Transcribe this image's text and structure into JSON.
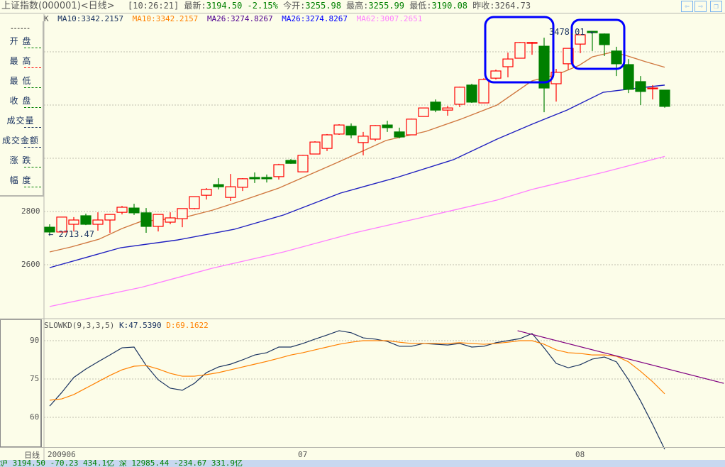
{
  "title": {
    "name": "上证指数(000001)<日线>",
    "time": "[10:26:21]",
    "latest_label": "最新:",
    "latest": "3194.50",
    "change_pct": "-2.15%",
    "open_label": "今开:",
    "open": "3255.98",
    "high_label": "最高:",
    "high": "3255.99",
    "low_label": "最低:",
    "low": "3190.08",
    "prev_close_label": "昨收:",
    "prev_close": "3264.73",
    "nav": {
      "back": "⇦",
      "forward": "⇨",
      "restore": "❐"
    }
  },
  "legend": {
    "k": "K",
    "ma10a": "MA10:3342.2157",
    "ma10b": "MA10:3342.2157",
    "ma26a": "MA26:3274.8267",
    "ma26b": "MA26:3274.8267",
    "ma62": "MA62:3007.2651",
    "colors": {
      "ma10a": "#1a3360",
      "ma10b": "#ff8000",
      "ma26a": "#500090",
      "ma26b": "#0000ff",
      "ma62": "#ff80ff"
    }
  },
  "sidebar": {
    "top_dash": "------",
    "items": [
      {
        "label": "开  盘",
        "dash": "#008000"
      },
      {
        "label": "最  高",
        "dash": "#ff0000"
      },
      {
        "label": "最  低",
        "dash": "#008000"
      },
      {
        "label": "收  盘",
        "dash": "#008000"
      },
      {
        "label": "成交量",
        "dash": "#1a3360"
      },
      {
        "label": "成交金额",
        "dash": "#1a3360"
      },
      {
        "label": "涨  跌",
        "dash": "#008000"
      },
      {
        "label": "幅  度",
        "dash": "#008000"
      }
    ]
  },
  "kd_legend": {
    "name": "SLOWKD(9,3,3,5)",
    "k": "K:47.5390",
    "d": "D:69.1622"
  },
  "bottom": {
    "period": "日线",
    "dates": [
      "200906",
      "07",
      "08"
    ]
  },
  "status": {
    "text": "沪 3194.50  -70.23  434.1亿  深 12985.44  -234.67  331.9亿"
  },
  "chart_data": [
    {
      "type": "candlestick",
      "y_ticks": [
        2600,
        2800
      ],
      "grid_levels": [
        2600,
        2800,
        3000,
        3200,
        3400
      ],
      "labels": {
        "low_marker": "2713.47",
        "high_marker": "3478.01"
      },
      "colors": {
        "up": "#ff0000",
        "down": "#008000"
      },
      "ohlc": [
        [
          2741,
          2752,
          2713,
          2723
        ],
        [
          2723,
          2779,
          2723,
          2779
        ],
        [
          2752,
          2779,
          2725,
          2768
        ],
        [
          2784,
          2792,
          2749,
          2752
        ],
        [
          2752,
          2797,
          2728,
          2768
        ],
        [
          2768,
          2789,
          2720,
          2789
        ],
        [
          2797,
          2821,
          2789,
          2816
        ],
        [
          2813,
          2829,
          2787,
          2795
        ],
        [
          2795,
          2813,
          2720,
          2744
        ],
        [
          2744,
          2789,
          2725,
          2789
        ],
        [
          2760,
          2797,
          2752,
          2776
        ],
        [
          2773,
          2811,
          2741,
          2811
        ],
        [
          2811,
          2856,
          2808,
          2856
        ],
        [
          2861,
          2888,
          2845,
          2883
        ],
        [
          2901,
          2925,
          2883,
          2893
        ],
        [
          2853,
          2941,
          2840,
          2893
        ],
        [
          2891,
          2925,
          2877,
          2923
        ],
        [
          2928,
          2947,
          2907,
          2923
        ],
        [
          2928,
          2939,
          2909,
          2923
        ],
        [
          2931,
          2979,
          2920,
          2976
        ],
        [
          2992,
          2997,
          2979,
          2981
        ],
        [
          2949,
          3013,
          2949,
          3011
        ],
        [
          3016,
          3064,
          3016,
          3061
        ],
        [
          3037,
          3091,
          3027,
          3088
        ],
        [
          3091,
          3128,
          3088,
          3125
        ],
        [
          3120,
          3131,
          3075,
          3088
        ],
        [
          3059,
          3099,
          3011,
          3083
        ],
        [
          3072,
          3125,
          3064,
          3123
        ],
        [
          3125,
          3141,
          3099,
          3115
        ],
        [
          3099,
          3115,
          3075,
          3080
        ],
        [
          3088,
          3149,
          3088,
          3147
        ],
        [
          3157,
          3189,
          3157,
          3189
        ],
        [
          3211,
          3221,
          3173,
          3181
        ],
        [
          3181,
          3197,
          3160,
          3189
        ],
        [
          3203,
          3269,
          3192,
          3267
        ],
        [
          3275,
          3280,
          3208,
          3211
        ],
        [
          3208,
          3301,
          3208,
          3296
        ],
        [
          3301,
          3333,
          3296,
          3328
        ],
        [
          3344,
          3397,
          3304,
          3373
        ],
        [
          3376,
          3437,
          3376,
          3435
        ],
        [
          3432,
          3437,
          3389,
          3435
        ],
        [
          3421,
          3453,
          3173,
          3264
        ],
        [
          3280,
          3336,
          3213,
          3323
        ],
        [
          3355,
          3413,
          3333,
          3413
        ],
        [
          3429,
          3464,
          3395,
          3464
        ],
        [
          3477,
          3478,
          3403,
          3472
        ],
        [
          3467,
          3469,
          3384,
          3427
        ],
        [
          3403,
          3419,
          3309,
          3355
        ],
        [
          3352,
          3373,
          3245,
          3259
        ],
        [
          3288,
          3309,
          3200,
          3251
        ],
        [
          3261,
          3275,
          3221,
          3264
        ],
        [
          3256,
          3256,
          3190,
          3195
        ]
      ],
      "ma": [
        {
          "name": "MA10",
          "color": "#d07840",
          "points": [
            [
              1,
              2648
            ],
            [
              2.8,
              2667
            ],
            [
              5.1,
              2696
            ],
            [
              7,
              2736
            ],
            [
              8.6,
              2763
            ],
            [
              12,
              2776
            ],
            [
              14.5,
              2805
            ],
            [
              16.9,
              2840
            ],
            [
              20,
              2888
            ],
            [
              24.7,
              2981
            ],
            [
              28.9,
              3067
            ],
            [
              32.2,
              3101
            ],
            [
              35.1,
              3147
            ],
            [
              38.1,
              3200
            ],
            [
              41,
              3291
            ],
            [
              43.1,
              3315
            ],
            [
              44.9,
              3349
            ],
            [
              46,
              3381
            ],
            [
              47.5,
              3397
            ],
            [
              48.6,
              3389
            ],
            [
              50.4,
              3363
            ],
            [
              52,
              3342
            ]
          ]
        },
        {
          "name": "MA26",
          "color": "#2020c0",
          "points": [
            [
              1,
              2589
            ],
            [
              6.9,
              2664
            ],
            [
              11.6,
              2693
            ],
            [
              16.3,
              2733
            ],
            [
              20.4,
              2787
            ],
            [
              25.1,
              2869
            ],
            [
              29.8,
              2928
            ],
            [
              34.5,
              2995
            ],
            [
              38.1,
              3072
            ],
            [
              41,
              3128
            ],
            [
              43.9,
              3181
            ],
            [
              46.9,
              3248
            ],
            [
              49.8,
              3264
            ],
            [
              52,
              3275
            ]
          ]
        },
        {
          "name": "MA62",
          "color": "#ff80ff",
          "points": [
            [
              1,
              2443
            ],
            [
              8.6,
              2515
            ],
            [
              14.5,
              2587
            ],
            [
              20.4,
              2648
            ],
            [
              26.3,
              2720
            ],
            [
              32.2,
              2781
            ],
            [
              38.1,
              2843
            ],
            [
              41,
              2883
            ],
            [
              46.9,
              2947
            ],
            [
              52,
              3007
            ]
          ]
        }
      ]
    },
    {
      "type": "line",
      "y_ticks": [
        60,
        75,
        90
      ],
      "series": [
        {
          "name": "K",
          "color": "#1a3360",
          "values": [
            64.4,
            69.7,
            75.6,
            78.9,
            81.7,
            84.4,
            87.2,
            87.5,
            80.3,
            74.7,
            71.4,
            70.6,
            73.3,
            77.5,
            79.7,
            80.8,
            82.5,
            84.4,
            85.3,
            87.5,
            87.5,
            88.9,
            90.6,
            92.2,
            93.9,
            93.1,
            91.1,
            90.6,
            89.7,
            87.8,
            87.8,
            88.9,
            88.6,
            88.3,
            88.9,
            87.5,
            87.8,
            89.2,
            90,
            90.8,
            92.8,
            87.2,
            81.1,
            79.4,
            80.6,
            82.8,
            83.6,
            81.7,
            74.7,
            66.4,
            57.2,
            47.5
          ]
        },
        {
          "name": "D",
          "color": "#ff8000",
          "values": [
            66.7,
            67.2,
            68.9,
            71.4,
            73.9,
            76.4,
            78.6,
            80,
            80.3,
            78.9,
            77.2,
            76.1,
            76.1,
            76.7,
            77.5,
            78.6,
            79.7,
            80.8,
            81.9,
            83.1,
            84.4,
            85.3,
            86.4,
            87.5,
            88.6,
            89.4,
            90,
            90,
            90,
            89.4,
            88.9,
            88.9,
            88.9,
            88.9,
            89.2,
            88.9,
            88.6,
            88.9,
            89.4,
            90,
            90,
            88.6,
            86.4,
            85.3,
            85,
            84.4,
            84.4,
            83.9,
            81.7,
            78,
            73.9,
            69.2
          ]
        }
      ],
      "trendline": {
        "color": "#800080",
        "from": [
          39.8,
          93.9
        ],
        "to": [
          56.9,
          73.3
        ]
      }
    }
  ]
}
